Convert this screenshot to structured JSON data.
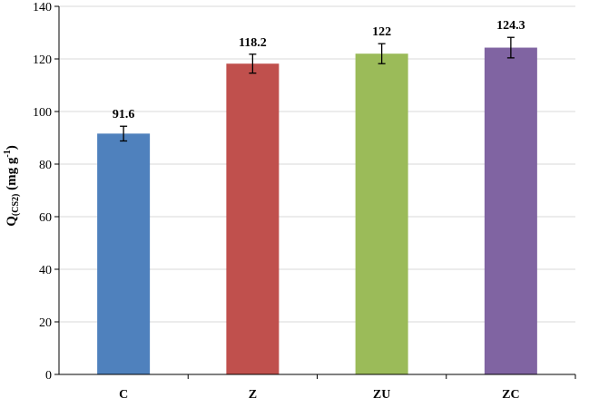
{
  "chart_data": {
    "type": "bar",
    "title": "",
    "ylabel": {
      "main": "Q",
      "sub": "(CS2)",
      "unit": " (mg g",
      "sup": "-1",
      "close": ")"
    },
    "xlabel": "",
    "categories": [
      "C",
      "Z",
      "ZU",
      "ZC"
    ],
    "values": [
      91.6,
      118.2,
      122,
      124.3
    ],
    "value_labels": [
      "91.6",
      "118.2",
      "122",
      "124.3"
    ],
    "errors": [
      2.8,
      3.6,
      3.8,
      3.9
    ],
    "colors": [
      "#4f81bd",
      "#c0504d",
      "#9bbb59",
      "#8064a2"
    ],
    "ylim": [
      0,
      140
    ],
    "yticks": [
      0,
      20,
      40,
      60,
      80,
      100,
      120,
      140
    ],
    "ytick_labels": [
      "0",
      "20",
      "40",
      "60",
      "80",
      "100",
      "120",
      "140"
    ],
    "grid": true,
    "legend": "none"
  }
}
